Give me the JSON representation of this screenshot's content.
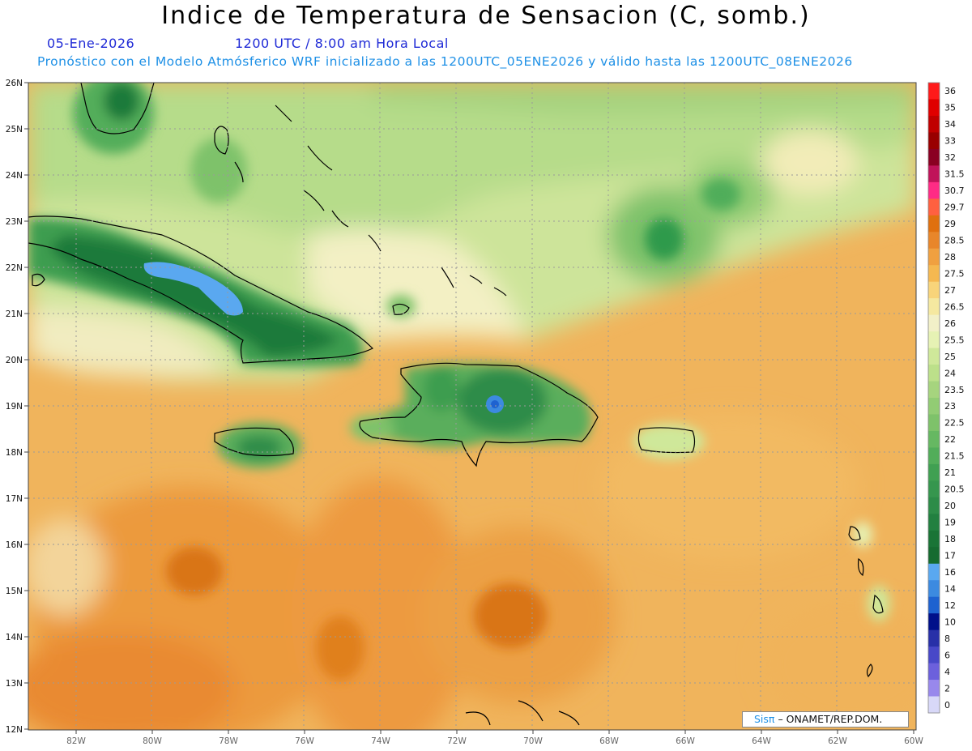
{
  "header": {
    "title": "Indice de Temperatura de Sensacion (C, somb.)",
    "date": "05-Ene-2026",
    "time": "1200 UTC / 8:00 am Hora Local",
    "description": "Pronóstico con el Modelo Atmósferico WRF inicializado a las 1200UTC_05ENE2026 y válido hasta las  1200UTC_08ENE2026"
  },
  "axes": {
    "lat_labels": [
      "26N",
      "25N",
      "24N",
      "23N",
      "22N",
      "21N",
      "20N",
      "19N",
      "18N",
      "17N",
      "16N",
      "15N",
      "14N",
      "13N",
      "12N"
    ],
    "lon_labels": [
      "82W",
      "80W",
      "78W",
      "76W",
      "74W",
      "72W",
      "70W",
      "68W",
      "66W",
      "64W",
      "62W",
      "60W"
    ]
  },
  "colorbar": {
    "labels": [
      "36",
      "35",
      "34",
      "33",
      "32",
      "31.5",
      "30.7",
      "29.7",
      "29",
      "28.5",
      "28",
      "27.5",
      "27",
      "26.5",
      "26",
      "25.5",
      "25",
      "24",
      "23.5",
      "23",
      "22.5",
      "22",
      "21.5",
      "21",
      "20.5",
      "20",
      "19",
      "18",
      "17",
      "16",
      "14",
      "12",
      "10",
      "8",
      "6",
      "4",
      "2",
      "0"
    ],
    "colors": [
      "#ff1a1a",
      "#e00000",
      "#c00000",
      "#990000",
      "#8a0022",
      "#c0135a",
      "#ff2b85",
      "#ff6040",
      "#e0700f",
      "#e8862a",
      "#f0a040",
      "#f5b850",
      "#f8d47a",
      "#f5e8a0",
      "#f2f0c8",
      "#e6f2b4",
      "#cfe89a",
      "#bce08a",
      "#a6d47e",
      "#92cc74",
      "#7ec26a",
      "#66b862",
      "#52ad5a",
      "#40a052",
      "#36964e",
      "#2d8c48",
      "#228040",
      "#1a7436",
      "#166b30",
      "#5aa8f0",
      "#3c8ae0",
      "#1e62d0",
      "#00108a",
      "#2830a8",
      "#4848c8",
      "#6c60dc",
      "#9888ec",
      "#d8d8f8"
    ]
  },
  "credit": {
    "brand": "Sisπ",
    "org": "– ONAMET/REP.DOM."
  }
}
